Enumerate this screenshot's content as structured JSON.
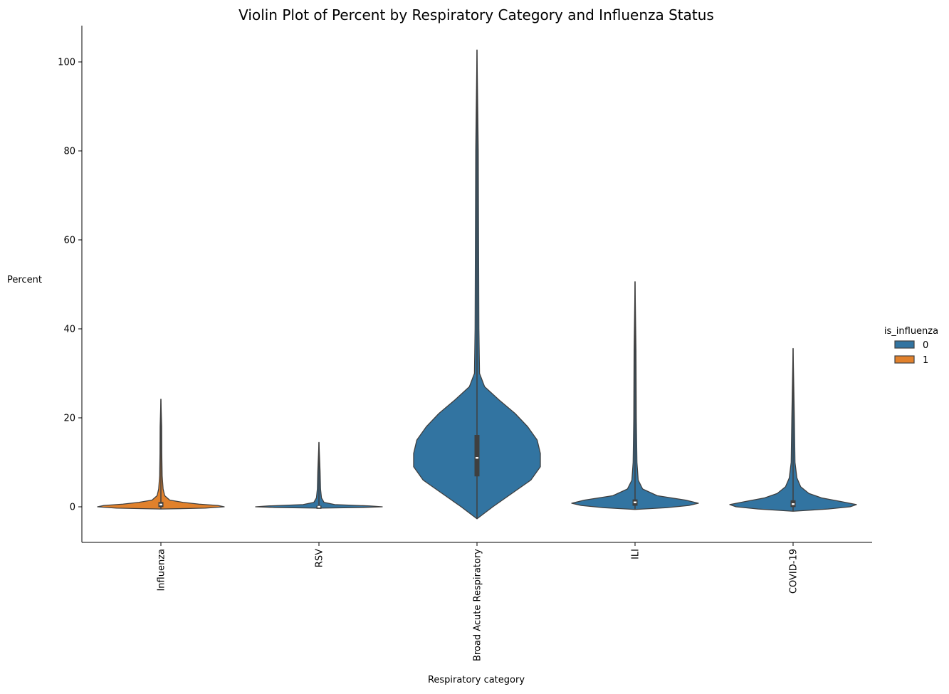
{
  "chart_data": {
    "type": "violin",
    "title": "Violin Plot of Percent by Respiratory Category and Influenza Status",
    "xlabel": "Respiratory category",
    "ylabel": "Percent",
    "ylim": [
      -8,
      108
    ],
    "yticks": [
      0,
      20,
      40,
      60,
      80,
      100
    ],
    "grid": false,
    "legend": {
      "title": "is_influenza",
      "placement": "right",
      "entries": [
        {
          "label": "0",
          "color": "#3274a1"
        },
        {
          "label": "1",
          "color": "#e1812c"
        }
      ]
    },
    "categories": [
      "Influenza",
      "RSV",
      "Broad Acute Respiratory",
      "ILI",
      "COVID-19"
    ],
    "violins": [
      {
        "category": "Influenza",
        "is_influenza": "1",
        "color": "#e1812c",
        "min": -0.5,
        "max": 24.2,
        "q1": 0.1,
        "median": 0.5,
        "q3": 0.9,
        "profile": [
          [
            -0.5,
            0.0
          ],
          [
            -0.3,
            0.7
          ],
          [
            0.0,
            1.0
          ],
          [
            0.3,
            0.9
          ],
          [
            0.6,
            0.6
          ],
          [
            1.0,
            0.35
          ],
          [
            1.5,
            0.14
          ],
          [
            2.5,
            0.06
          ],
          [
            4.0,
            0.035
          ],
          [
            7.0,
            0.02
          ],
          [
            12.0,
            0.014
          ],
          [
            18.0,
            0.012
          ],
          [
            24.2,
            0.0
          ]
        ]
      },
      {
        "category": "RSV",
        "is_influenza": "0",
        "color": "#3274a1",
        "min": -0.3,
        "max": 14.5,
        "q1": -0.3,
        "median": 0.0,
        "q3": 0.1,
        "profile": [
          [
            -0.3,
            0.0
          ],
          [
            -0.15,
            0.7
          ],
          [
            0.0,
            1.0
          ],
          [
            0.2,
            0.8
          ],
          [
            0.5,
            0.25
          ],
          [
            1.0,
            0.08
          ],
          [
            2.0,
            0.04
          ],
          [
            4.0,
            0.025
          ],
          [
            8.0,
            0.018
          ],
          [
            14.5,
            0.0
          ]
        ]
      },
      {
        "category": "Broad Acute Respiratory",
        "is_influenza": "0",
        "color": "#3274a1",
        "min": -2.7,
        "max": 102.7,
        "q1": 7.0,
        "median": 11.0,
        "q3": 16.0,
        "profile": [
          [
            -2.7,
            0.0
          ],
          [
            0.0,
            0.25
          ],
          [
            3.0,
            0.55
          ],
          [
            6.0,
            0.85
          ],
          [
            9.0,
            1.0
          ],
          [
            12.0,
            1.0
          ],
          [
            15.0,
            0.95
          ],
          [
            18.0,
            0.8
          ],
          [
            21.0,
            0.6
          ],
          [
            24.0,
            0.35
          ],
          [
            27.0,
            0.12
          ],
          [
            30.0,
            0.04
          ],
          [
            40.0,
            0.03
          ],
          [
            60.0,
            0.025
          ],
          [
            80.0,
            0.02
          ],
          [
            102.7,
            0.0
          ]
        ]
      },
      {
        "category": "ILI",
        "is_influenza": "0",
        "color": "#3274a1",
        "min": -0.6,
        "max": 50.6,
        "q1": 0.4,
        "median": 1.0,
        "q3": 1.5,
        "profile": [
          [
            -0.6,
            0.0
          ],
          [
            -0.2,
            0.5
          ],
          [
            0.3,
            0.85
          ],
          [
            0.8,
            1.0
          ],
          [
            1.5,
            0.8
          ],
          [
            2.5,
            0.35
          ],
          [
            4.0,
            0.12
          ],
          [
            6.0,
            0.05
          ],
          [
            10.0,
            0.03
          ],
          [
            20.0,
            0.02
          ],
          [
            35.0,
            0.015
          ],
          [
            50.6,
            0.0
          ]
        ]
      },
      {
        "category": "COVID-19",
        "is_influenza": "0",
        "color": "#3274a1",
        "min": -1.0,
        "max": 35.6,
        "q1": 0.1,
        "median": 0.6,
        "q3": 1.3,
        "profile": [
          [
            -1.0,
            0.0
          ],
          [
            -0.5,
            0.55
          ],
          [
            0.0,
            0.9
          ],
          [
            0.5,
            1.0
          ],
          [
            1.2,
            0.75
          ],
          [
            2.0,
            0.45
          ],
          [
            3.0,
            0.25
          ],
          [
            4.5,
            0.12
          ],
          [
            6.5,
            0.06
          ],
          [
            10.0,
            0.03
          ],
          [
            20.0,
            0.02
          ],
          [
            35.6,
            0.0
          ]
        ]
      }
    ]
  }
}
